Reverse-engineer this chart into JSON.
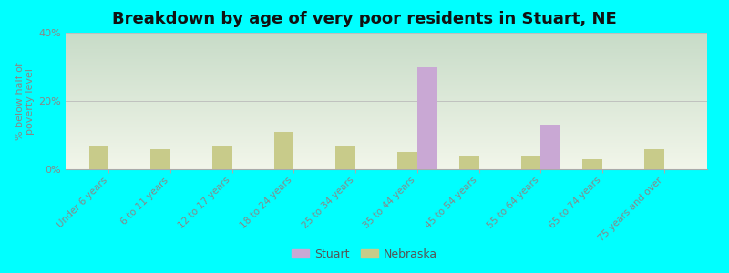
{
  "title": "Breakdown by age of very poor residents in Stuart, NE",
  "ylabel": "% below half of\npoverty level",
  "categories": [
    "Under 6 years",
    "6 to 11 years",
    "12 to 17 years",
    "18 to 24 years",
    "25 to 34 years",
    "35 to 44 years",
    "45 to 54 years",
    "55 to 64 years",
    "65 to 74 years",
    "75 years and over"
  ],
  "stuart_values": [
    0,
    0,
    0,
    0,
    0,
    30,
    0,
    13,
    0,
    0
  ],
  "nebraska_values": [
    7,
    6,
    7,
    11,
    7,
    5,
    4,
    4,
    3,
    6
  ],
  "stuart_color": "#c9a8d4",
  "nebraska_color": "#c8cb8a",
  "background_color": "#00ffff",
  "plot_bg_top": "#c8dcc8",
  "plot_bg_bottom": "#f2f6ea",
  "ylim": [
    0,
    40
  ],
  "yticks": [
    0,
    20,
    40
  ],
  "ytick_labels": [
    "0%",
    "20%",
    "40%"
  ],
  "bar_width": 0.32,
  "title_fontsize": 13,
  "legend_labels": [
    "Stuart",
    "Nebraska"
  ],
  "grid_color": "#bbbbbb",
  "tick_color": "#888888",
  "label_fontsize": 8,
  "xtick_fontsize": 7.5
}
